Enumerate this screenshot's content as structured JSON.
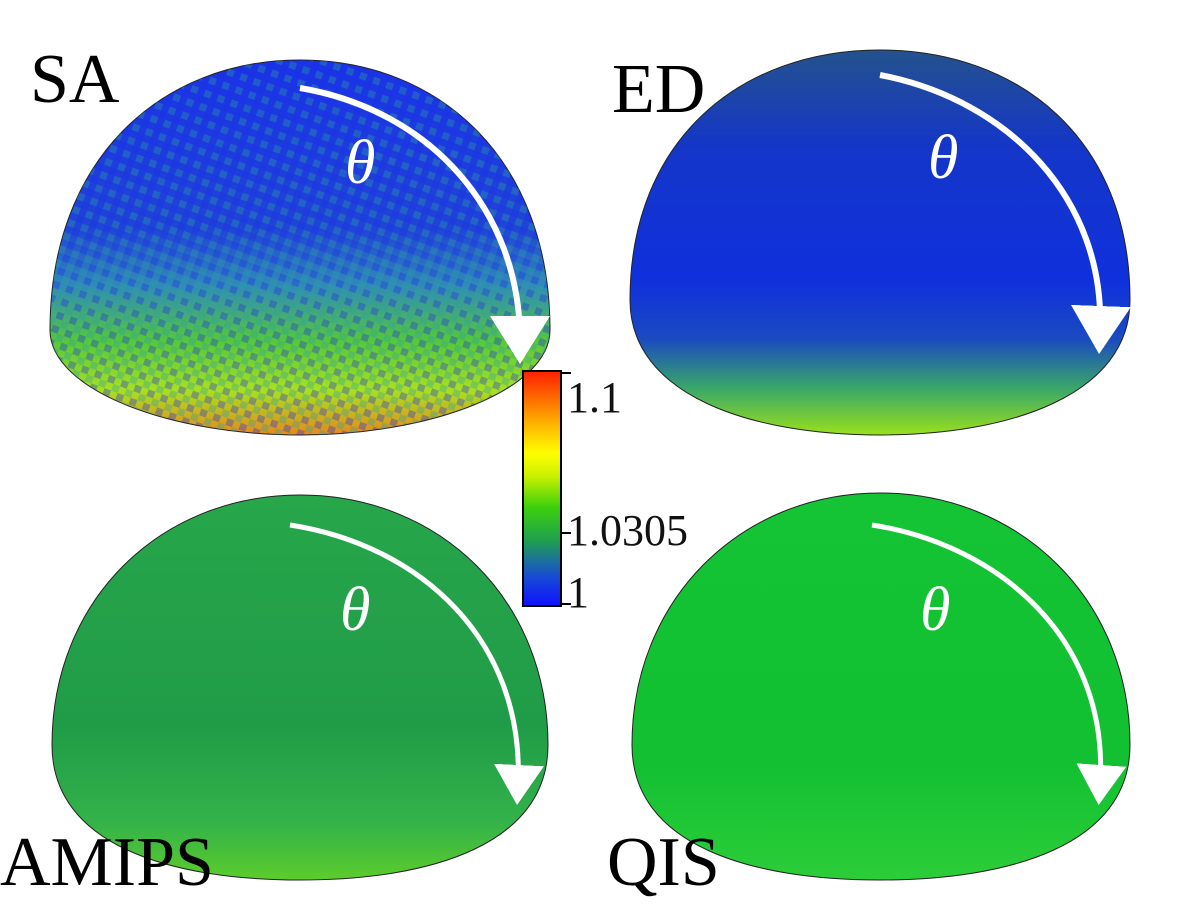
{
  "panels": [
    {
      "id": "sa",
      "label": "SA",
      "theta": "θ",
      "colors": [
        "#1a33e6",
        "#1a3ae0",
        "#2f7bd0",
        "#4fc24a",
        "#7fdc1a",
        "#c8e61a",
        "#e8c81a",
        "#f05a1a"
      ]
    },
    {
      "id": "ed",
      "label": "ED",
      "theta": "θ",
      "colors": [
        "#22449c",
        "#1233d9",
        "#1030dc",
        "#1840c8",
        "#35a070",
        "#8fdc1a"
      ]
    },
    {
      "id": "amips",
      "label": "AMIPS",
      "theta": "θ",
      "colors": [
        "#24a44a",
        "#1f9e48",
        "#2aa84a",
        "#3bb844",
        "#55c82c"
      ]
    },
    {
      "id": "qis",
      "label": "QIS",
      "theta": "θ",
      "colors": [
        "#14c434",
        "#12c032",
        "#16c636",
        "#1fbf30",
        "#2ec63a"
      ]
    }
  ],
  "colorbar": {
    "min_label": "1",
    "mid_label": "1.0305",
    "max_label": "1.1",
    "min": 1,
    "mid": 1.0305,
    "max": 1.1,
    "colors": [
      "#1010ff",
      "#1848d8",
      "#20a050",
      "#3cd00c",
      "#c8f000",
      "#ffff00",
      "#ffb000",
      "#ff6000",
      "#ff2000"
    ]
  }
}
